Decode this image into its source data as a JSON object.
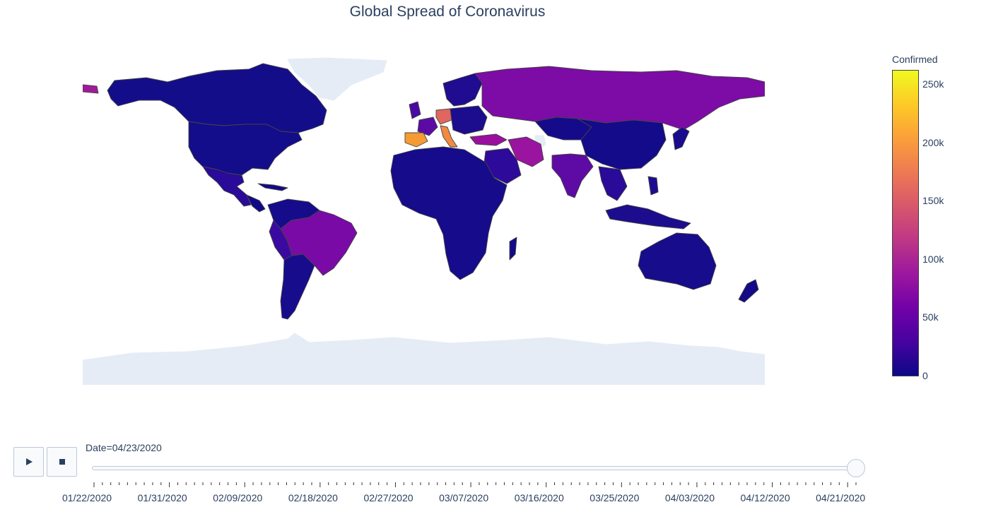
{
  "title": "Global Spread of Coronavirus",
  "colorbar": {
    "title": "Confirmed",
    "ticks": [
      "250k",
      "200k",
      "150k",
      "100k",
      "50k",
      "0"
    ],
    "tick_values": [
      250000,
      200000,
      150000,
      100000,
      50000,
      0
    ],
    "max": 263000,
    "colors": [
      "#f0f921",
      "#fdca26",
      "#fb9f3a",
      "#ed7953",
      "#d8576b",
      "#bd3786",
      "#9c179e",
      "#7201a8",
      "#46039f",
      "#0d0887"
    ]
  },
  "map": {
    "ocean_unfilled": "#ffffff",
    "no_data_land": "#e5ecf6",
    "border_color": "#444444"
  },
  "controls": {
    "play_icon": "play-icon",
    "stop_icon": "stop-icon"
  },
  "slider": {
    "current_label": "Date=04/23/2020",
    "position_fraction": 1.0,
    "dates": [
      "01/22/2020",
      "01/31/2020",
      "02/09/2020",
      "02/18/2020",
      "02/27/2020",
      "03/07/2020",
      "03/16/2020",
      "03/25/2020",
      "04/03/2020",
      "04/12/2020",
      "04/21/2020"
    ]
  }
}
